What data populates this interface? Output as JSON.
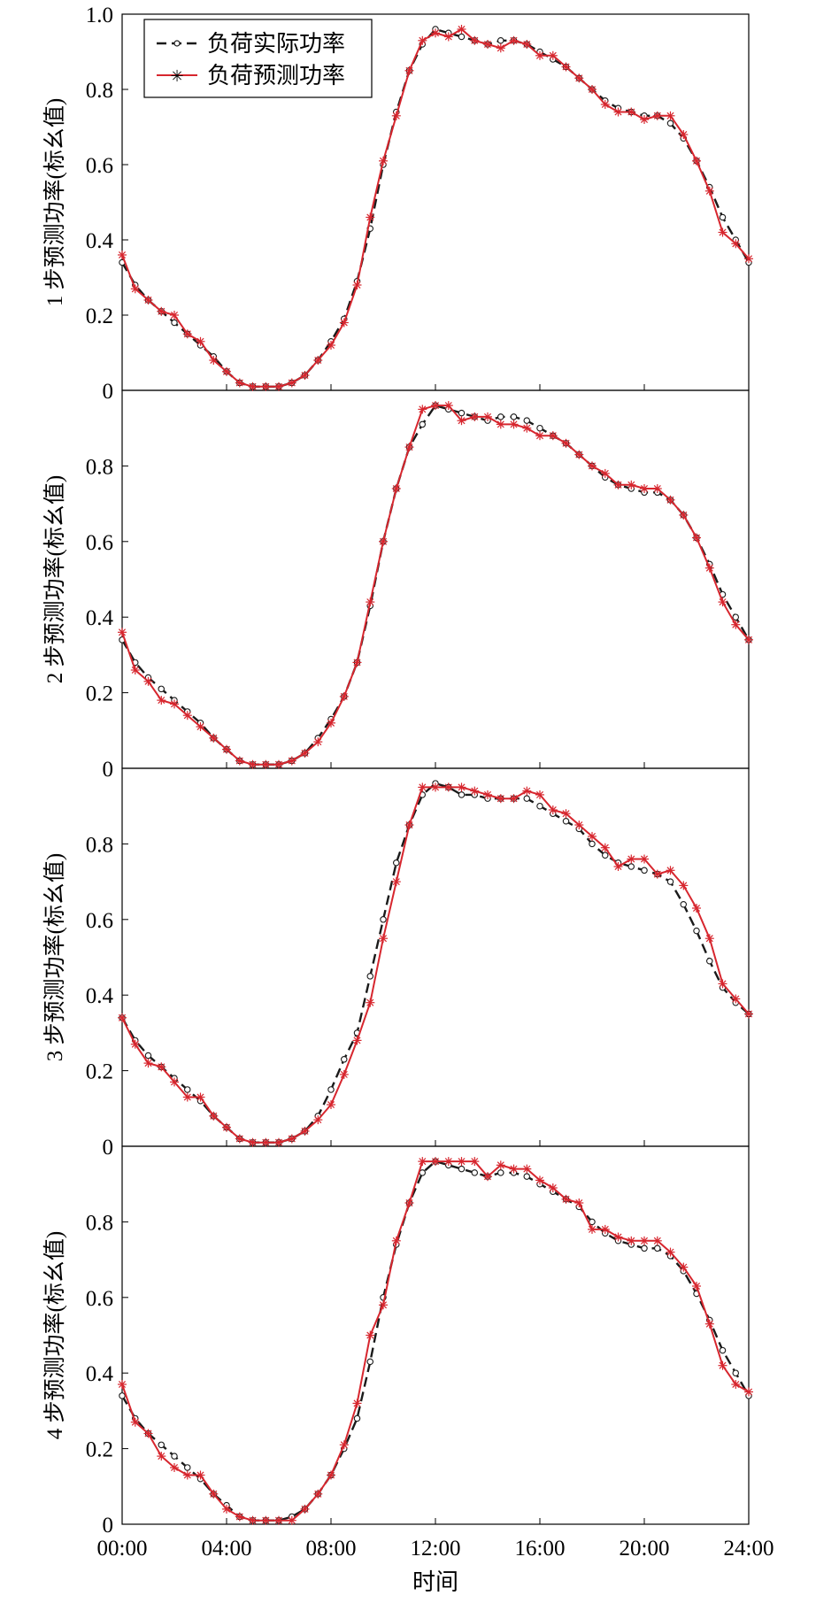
{
  "figure": {
    "xlabel": "时间",
    "x_ticks": [
      "00:00",
      "04:00",
      "08:00",
      "12:00",
      "16:00",
      "20:00",
      "24:00"
    ],
    "legend": {
      "actual": "负荷实际功率",
      "predicted": "负荷预测功率",
      "placement": "top-left of first panel"
    },
    "colors": {
      "actual": "#1a1a1a",
      "predicted": "#d7262e",
      "axis": "#000000"
    }
  },
  "chart_data": [
    {
      "type": "line",
      "ylabel": "1 步预测功率(标幺值)",
      "ylim": [
        0,
        1.0
      ],
      "yticks": [
        "0",
        "0.2",
        "0.4",
        "0.6",
        "0.8",
        "1.0"
      ],
      "xlim": [
        0,
        24
      ],
      "series": [
        {
          "name": "负荷实际功率",
          "x": [
            0,
            0.5,
            1,
            1.5,
            2,
            2.5,
            3,
            3.5,
            4,
            4.5,
            5,
            5.5,
            6,
            6.5,
            7,
            7.5,
            8,
            8.5,
            9,
            9.5,
            10,
            10.5,
            11,
            11.5,
            12,
            12.5,
            13,
            13.5,
            14,
            14.5,
            15,
            15.5,
            16,
            16.5,
            17,
            17.5,
            18,
            18.5,
            19,
            19.5,
            20,
            20.5,
            21,
            21.5,
            22,
            22.5,
            23,
            23.5,
            24
          ],
          "y": [
            0.34,
            0.28,
            0.24,
            0.21,
            0.18,
            0.15,
            0.12,
            0.09,
            0.05,
            0.02,
            0.01,
            0.01,
            0.01,
            0.02,
            0.04,
            0.08,
            0.13,
            0.19,
            0.29,
            0.43,
            0.6,
            0.74,
            0.85,
            0.92,
            0.96,
            0.95,
            0.94,
            0.93,
            0.92,
            0.93,
            0.93,
            0.92,
            0.9,
            0.88,
            0.86,
            0.83,
            0.8,
            0.77,
            0.75,
            0.74,
            0.73,
            0.73,
            0.71,
            0.67,
            0.61,
            0.54,
            0.46,
            0.4,
            0.34
          ]
        },
        {
          "name": "负荷预测功率",
          "x": [
            0,
            0.5,
            1,
            1.5,
            2,
            2.5,
            3,
            3.5,
            4,
            4.5,
            5,
            5.5,
            6,
            6.5,
            7,
            7.5,
            8,
            8.5,
            9,
            9.5,
            10,
            10.5,
            11,
            11.5,
            12,
            12.5,
            13,
            13.5,
            14,
            14.5,
            15,
            15.5,
            16,
            16.5,
            17,
            17.5,
            18,
            18.5,
            19,
            19.5,
            20,
            20.5,
            21,
            21.5,
            22,
            22.5,
            23,
            23.5,
            24
          ],
          "y": [
            0.36,
            0.27,
            0.24,
            0.21,
            0.2,
            0.15,
            0.13,
            0.08,
            0.05,
            0.02,
            0.01,
            0.01,
            0.01,
            0.02,
            0.04,
            0.08,
            0.12,
            0.18,
            0.28,
            0.46,
            0.61,
            0.73,
            0.85,
            0.93,
            0.95,
            0.94,
            0.96,
            0.93,
            0.92,
            0.91,
            0.93,
            0.92,
            0.89,
            0.89,
            0.86,
            0.83,
            0.8,
            0.76,
            0.74,
            0.74,
            0.72,
            0.73,
            0.73,
            0.68,
            0.61,
            0.53,
            0.42,
            0.39,
            0.35
          ]
        }
      ]
    },
    {
      "type": "line",
      "ylabel": "2 步预测功率(标幺值)",
      "ylim": [
        0,
        1.0
      ],
      "yticks": [
        "0",
        "0.2",
        "0.4",
        "0.6",
        "0.8"
      ],
      "xlim": [
        0,
        24
      ],
      "series": [
        {
          "name": "负荷实际功率",
          "x": [
            0,
            0.5,
            1,
            1.5,
            2,
            2.5,
            3,
            3.5,
            4,
            4.5,
            5,
            5.5,
            6,
            6.5,
            7,
            7.5,
            8,
            8.5,
            9,
            9.5,
            10,
            10.5,
            11,
            11.5,
            12,
            12.5,
            13,
            13.5,
            14,
            14.5,
            15,
            15.5,
            16,
            16.5,
            17,
            17.5,
            18,
            18.5,
            19,
            19.5,
            20,
            20.5,
            21,
            21.5,
            22,
            22.5,
            23,
            23.5,
            24
          ],
          "y": [
            0.34,
            0.28,
            0.24,
            0.21,
            0.18,
            0.15,
            0.12,
            0.08,
            0.05,
            0.02,
            0.01,
            0.01,
            0.01,
            0.02,
            0.04,
            0.08,
            0.13,
            0.19,
            0.28,
            0.43,
            0.6,
            0.74,
            0.85,
            0.91,
            0.96,
            0.95,
            0.94,
            0.93,
            0.92,
            0.93,
            0.93,
            0.92,
            0.9,
            0.88,
            0.86,
            0.83,
            0.8,
            0.77,
            0.75,
            0.74,
            0.73,
            0.73,
            0.71,
            0.67,
            0.61,
            0.54,
            0.46,
            0.4,
            0.34
          ]
        },
        {
          "name": "负荷预测功率",
          "x": [
            0,
            0.5,
            1,
            1.5,
            2,
            2.5,
            3,
            3.5,
            4,
            4.5,
            5,
            5.5,
            6,
            6.5,
            7,
            7.5,
            8,
            8.5,
            9,
            9.5,
            10,
            10.5,
            11,
            11.5,
            12,
            12.5,
            13,
            13.5,
            14,
            14.5,
            15,
            15.5,
            16,
            16.5,
            17,
            17.5,
            18,
            18.5,
            19,
            19.5,
            20,
            20.5,
            21,
            21.5,
            22,
            22.5,
            23,
            23.5,
            24
          ],
          "y": [
            0.36,
            0.26,
            0.23,
            0.18,
            0.17,
            0.14,
            0.11,
            0.08,
            0.05,
            0.02,
            0.01,
            0.01,
            0.01,
            0.02,
            0.04,
            0.07,
            0.12,
            0.19,
            0.28,
            0.44,
            0.6,
            0.74,
            0.85,
            0.95,
            0.96,
            0.96,
            0.92,
            0.93,
            0.93,
            0.91,
            0.91,
            0.9,
            0.88,
            0.88,
            0.86,
            0.83,
            0.8,
            0.78,
            0.75,
            0.75,
            0.74,
            0.74,
            0.71,
            0.67,
            0.61,
            0.53,
            0.44,
            0.38,
            0.34
          ]
        }
      ]
    },
    {
      "type": "line",
      "ylabel": "3 步预测功率(标幺值)",
      "ylim": [
        0,
        1.0
      ],
      "yticks": [
        "0",
        "0.2",
        "0.4",
        "0.6",
        "0.8"
      ],
      "xlim": [
        0,
        24
      ],
      "series": [
        {
          "name": "负荷实际功率",
          "x": [
            0,
            0.5,
            1,
            1.5,
            2,
            2.5,
            3,
            3.5,
            4,
            4.5,
            5,
            5.5,
            6,
            6.5,
            7,
            7.5,
            8,
            8.5,
            9,
            9.5,
            10,
            10.5,
            11,
            11.5,
            12,
            12.5,
            13,
            13.5,
            14,
            14.5,
            15,
            15.5,
            16,
            16.5,
            17,
            17.5,
            18,
            18.5,
            19,
            19.5,
            20,
            20.5,
            21,
            21.5,
            22,
            22.5,
            23,
            23.5,
            24
          ],
          "y": [
            0.34,
            0.28,
            0.24,
            0.21,
            0.18,
            0.15,
            0.12,
            0.08,
            0.05,
            0.02,
            0.01,
            0.01,
            0.01,
            0.02,
            0.04,
            0.08,
            0.15,
            0.23,
            0.3,
            0.45,
            0.6,
            0.75,
            0.85,
            0.93,
            0.96,
            0.95,
            0.93,
            0.93,
            0.92,
            0.92,
            0.92,
            0.92,
            0.9,
            0.88,
            0.86,
            0.84,
            0.8,
            0.77,
            0.75,
            0.74,
            0.73,
            0.72,
            0.7,
            0.64,
            0.57,
            0.49,
            0.42,
            0.38,
            0.35
          ]
        },
        {
          "name": "负荷预测功率",
          "x": [
            0,
            0.5,
            1,
            1.5,
            2,
            2.5,
            3,
            3.5,
            4,
            4.5,
            5,
            5.5,
            6,
            6.5,
            7,
            7.5,
            8,
            8.5,
            9,
            9.5,
            10,
            10.5,
            11,
            11.5,
            12,
            12.5,
            13,
            13.5,
            14,
            14.5,
            15,
            15.5,
            16,
            16.5,
            17,
            17.5,
            18,
            18.5,
            19,
            19.5,
            20,
            20.5,
            21,
            21.5,
            22,
            22.5,
            23,
            23.5,
            24
          ],
          "y": [
            0.34,
            0.27,
            0.22,
            0.21,
            0.17,
            0.13,
            0.13,
            0.08,
            0.05,
            0.02,
            0.01,
            0.01,
            0.01,
            0.02,
            0.04,
            0.07,
            0.11,
            0.19,
            0.28,
            0.38,
            0.55,
            0.7,
            0.85,
            0.95,
            0.95,
            0.95,
            0.95,
            0.94,
            0.93,
            0.92,
            0.92,
            0.94,
            0.93,
            0.89,
            0.88,
            0.85,
            0.82,
            0.79,
            0.74,
            0.76,
            0.76,
            0.72,
            0.73,
            0.69,
            0.63,
            0.55,
            0.43,
            0.39,
            0.35
          ]
        }
      ]
    },
    {
      "type": "line",
      "ylabel": "4 步预测功率(标幺值)",
      "ylim": [
        0,
        1.0
      ],
      "yticks": [
        "0",
        "0.2",
        "0.4",
        "0.6",
        "0.8"
      ],
      "xlim": [
        0,
        24
      ],
      "series": [
        {
          "name": "负荷实际功率",
          "x": [
            0,
            0.5,
            1,
            1.5,
            2,
            2.5,
            3,
            3.5,
            4,
            4.5,
            5,
            5.5,
            6,
            6.5,
            7,
            7.5,
            8,
            8.5,
            9,
            9.5,
            10,
            10.5,
            11,
            11.5,
            12,
            12.5,
            13,
            13.5,
            14,
            14.5,
            15,
            15.5,
            16,
            16.5,
            17,
            17.5,
            18,
            18.5,
            19,
            19.5,
            20,
            20.5,
            21,
            21.5,
            22,
            22.5,
            23,
            23.5,
            24
          ],
          "y": [
            0.34,
            0.28,
            0.24,
            0.21,
            0.18,
            0.15,
            0.12,
            0.08,
            0.05,
            0.02,
            0.01,
            0.01,
            0.01,
            0.02,
            0.04,
            0.08,
            0.13,
            0.2,
            0.28,
            0.43,
            0.6,
            0.74,
            0.85,
            0.93,
            0.96,
            0.95,
            0.94,
            0.93,
            0.92,
            0.93,
            0.93,
            0.92,
            0.9,
            0.88,
            0.86,
            0.84,
            0.8,
            0.77,
            0.75,
            0.74,
            0.73,
            0.73,
            0.71,
            0.67,
            0.61,
            0.54,
            0.46,
            0.4,
            0.34
          ]
        },
        {
          "name": "负荷预测功率",
          "x": [
            0,
            0.5,
            1,
            1.5,
            2,
            2.5,
            3,
            3.5,
            4,
            4.5,
            5,
            5.5,
            6,
            6.5,
            7,
            7.5,
            8,
            8.5,
            9,
            9.5,
            10,
            10.5,
            11,
            11.5,
            12,
            12.5,
            13,
            13.5,
            14,
            14.5,
            15,
            15.5,
            16,
            16.5,
            17,
            17.5,
            18,
            18.5,
            19,
            19.5,
            20,
            20.5,
            21,
            21.5,
            22,
            22.5,
            23,
            23.5,
            24
          ],
          "y": [
            0.37,
            0.27,
            0.24,
            0.18,
            0.15,
            0.13,
            0.13,
            0.08,
            0.04,
            0.02,
            0.01,
            0.01,
            0.01,
            0.01,
            0.04,
            0.08,
            0.13,
            0.21,
            0.32,
            0.5,
            0.58,
            0.75,
            0.85,
            0.96,
            0.96,
            0.96,
            0.96,
            0.96,
            0.92,
            0.95,
            0.94,
            0.94,
            0.91,
            0.89,
            0.86,
            0.85,
            0.78,
            0.78,
            0.76,
            0.75,
            0.75,
            0.75,
            0.72,
            0.68,
            0.63,
            0.53,
            0.42,
            0.37,
            0.35
          ]
        }
      ]
    }
  ]
}
